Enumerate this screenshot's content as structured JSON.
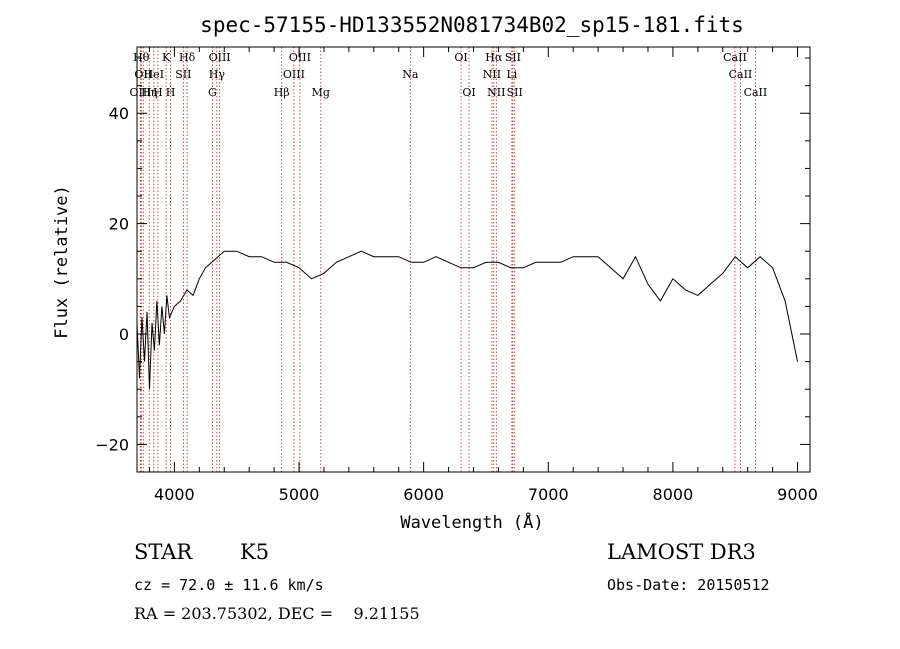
{
  "chart_data": {
    "type": "line",
    "title": "spec-57155-HD133552N081734B02_sp15-181.fits",
    "xlabel": "Wavelength (Å)",
    "ylabel": "Flux (relative)",
    "xlim": [
      3700,
      9100
    ],
    "ylim": [
      -25,
      52
    ],
    "x_ticks": [
      4000,
      5000,
      6000,
      7000,
      8000,
      9000
    ],
    "y_ticks": [
      -20,
      0,
      20,
      40
    ],
    "grid": false,
    "line_color": "#000000",
    "marker_color": "#b22222",
    "series": [
      {
        "x": [
          3700,
          3720,
          3740,
          3760,
          3780,
          3800,
          3820,
          3840,
          3860,
          3880,
          3900,
          3920,
          3940,
          3960,
          3980,
          4000,
          4050,
          4100,
          4150,
          4200,
          4250,
          4300,
          4350,
          4400,
          4500,
          4600,
          4700,
          4800,
          4900,
          5000,
          5100,
          5200,
          5300,
          5400,
          5500,
          5600,
          5700,
          5800,
          5900,
          6000,
          6100,
          6200,
          6300,
          6400,
          6500,
          6600,
          6700,
          6800,
          6900,
          7000,
          7100,
          7200,
          7300,
          7400,
          7500,
          7600,
          7700,
          7800,
          7900,
          8000,
          8100,
          8200,
          8300,
          8400,
          8500,
          8600,
          8700,
          8800,
          8900,
          9000
        ],
        "y": [
          2,
          -8,
          3,
          -5,
          4,
          -10,
          2,
          -3,
          6,
          -2,
          5,
          0,
          7,
          3,
          4,
          5,
          6,
          8,
          7,
          10,
          12,
          13,
          14,
          15,
          15,
          14,
          14,
          13,
          13,
          12,
          10,
          11,
          13,
          14,
          15,
          14,
          14,
          14,
          13,
          13,
          14,
          13,
          12,
          12,
          13,
          13,
          12,
          12,
          13,
          13,
          13,
          14,
          14,
          14,
          12,
          10,
          14,
          9,
          6,
          10,
          8,
          7,
          9,
          11,
          14,
          12,
          14,
          12,
          6,
          -5
        ]
      }
    ],
    "line_markers": [
      {
        "wavelength": 3734,
        "row": 1,
        "label": "Hθ"
      },
      {
        "wavelength": 3750,
        "row": 2,
        "label": "OII"
      },
      {
        "wavelength": 3728,
        "row": 3,
        "label": "OIII"
      },
      {
        "wavelength": 3798,
        "row": 3,
        "label": "Hη"
      },
      {
        "wavelength": 3835,
        "row": 2,
        "label": "HeI"
      },
      {
        "wavelength": 3868,
        "row": 3,
        "label": "H"
      },
      {
        "wavelength": 3934,
        "row": 1,
        "label": "K"
      },
      {
        "wavelength": 3969,
        "row": 3,
        "label": "H"
      },
      {
        "wavelength": 4072,
        "row": 2,
        "label": "SII"
      },
      {
        "wavelength": 4102,
        "row": 1,
        "label": "Hδ"
      },
      {
        "wavelength": 4305,
        "row": 3,
        "label": "G"
      },
      {
        "wavelength": 4341,
        "row": 2,
        "label": "Hγ"
      },
      {
        "wavelength": 4363,
        "row": 1,
        "label": "OIII"
      },
      {
        "wavelength": 4861,
        "row": 3,
        "label": "Hβ"
      },
      {
        "wavelength": 4959,
        "row": 2,
        "label": "OIII"
      },
      {
        "wavelength": 5007,
        "row": 1,
        "label": "OIII"
      },
      {
        "wavelength": 5175,
        "row": 3,
        "label": "Mg"
      },
      {
        "wavelength": 5893,
        "row": 2,
        "label": "Na"
      },
      {
        "wavelength": 6300,
        "row": 1,
        "label": "OI"
      },
      {
        "wavelength": 6364,
        "row": 3,
        "label": "OI"
      },
      {
        "wavelength": 6548,
        "row": 2,
        "label": "NII"
      },
      {
        "wavelength": 6563,
        "row": 1,
        "label": "Hα"
      },
      {
        "wavelength": 6583,
        "row": 3,
        "label": "NII"
      },
      {
        "wavelength": 6708,
        "row": 2,
        "label": "Li"
      },
      {
        "wavelength": 6716,
        "row": 1,
        "label": "SII"
      },
      {
        "wavelength": 6731,
        "row": 3,
        "label": "SII"
      },
      {
        "wavelength": 8498,
        "row": 1,
        "label": "CaII"
      },
      {
        "wavelength": 8542,
        "row": 2,
        "label": "CaII"
      },
      {
        "wavelength": 8662,
        "row": 3,
        "label": "CaII"
      }
    ]
  },
  "info": {
    "class": "STAR",
    "subclass": "K5",
    "survey": "LAMOST DR3",
    "cz": "cz = 72.0 ± 11.6 km/s",
    "obs_date": "Obs-Date: 20150512",
    "coords": "RA = 203.75302, DEC =    9.21155"
  }
}
